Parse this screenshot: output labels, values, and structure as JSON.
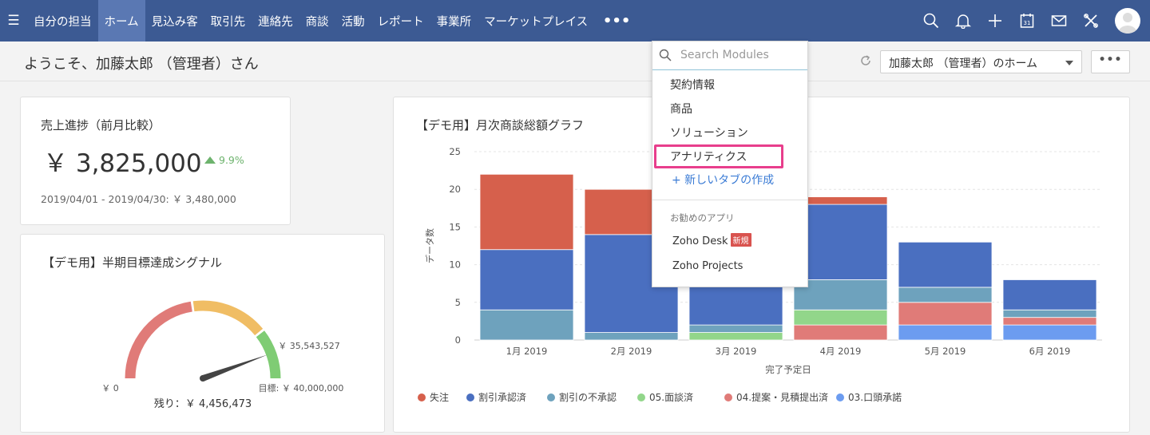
{
  "nav": {
    "items": [
      {
        "label": "自分の担当",
        "active": false
      },
      {
        "label": "ホーム",
        "active": true
      },
      {
        "label": "見込み客",
        "active": false
      },
      {
        "label": "取引先",
        "active": false
      },
      {
        "label": "連絡先",
        "active": false
      },
      {
        "label": "商談",
        "active": false
      },
      {
        "label": "活動",
        "active": false
      },
      {
        "label": "レポート",
        "active": false
      },
      {
        "label": "事業所",
        "active": false
      },
      {
        "label": "マーケットプレイス",
        "active": false
      }
    ],
    "more_label": "•••",
    "calendar_day": "31"
  },
  "header": {
    "welcome": "ようこそ、加藤太郎 （管理者）さん",
    "home_select": "加藤太郎 （管理者）のホーム",
    "more_label": "•••"
  },
  "dropdown": {
    "search_placeholder": "Search Modules",
    "items": [
      "契約情報",
      "商品",
      "ソリューション",
      "アナリティクス"
    ],
    "new_tab": "+ 新しいタブの作成",
    "section_title": "お勧めのアプリ",
    "apps": [
      {
        "label": "Zoho Desk",
        "badge": "新規"
      },
      {
        "label": "Zoho Projects",
        "badge": ""
      }
    ]
  },
  "sales_card": {
    "title": "売上進捗（前月比較）",
    "value": "￥ 3,825,000",
    "change": "9.9%",
    "previous": "2019/04/01 - 2019/04/30: ￥ 3,480,000"
  },
  "gauge_card": {
    "title": "【デモ用】半期目標達成シグナル",
    "min_label": "￥ 0",
    "max_label": "目標: ￥ 40,000,000",
    "current_label": "￥ 35,543,527",
    "remaining_label": "残り：￥ 4,456,473",
    "min": 0,
    "max": 40000000,
    "value": 35543527,
    "colors": [
      "#e07b78",
      "#f0bd64",
      "#7fcc74"
    ]
  },
  "chart_data": {
    "type": "bar",
    "stacked": true,
    "title": "【デモ用】月次商談総額グラフ",
    "xlabel": "完了予定日",
    "ylabel": "データ数",
    "ylim": [
      0,
      25
    ],
    "yticks": [
      0,
      5,
      10,
      15,
      20,
      25
    ],
    "grid": true,
    "legend_position": "bottom",
    "categories": [
      "1月 2019",
      "2月 2019",
      "3月 2019",
      "4月 2019",
      "5月 2019",
      "6月 2019"
    ],
    "series": [
      {
        "name": "03.口頭承諾",
        "color": "#6c9cf0",
        "values": [
          0,
          0,
          0,
          0,
          2,
          2
        ]
      },
      {
        "name": "04.提案・見積提出済",
        "color": "#e07b78",
        "values": [
          0,
          0,
          0,
          2,
          3,
          1
        ]
      },
      {
        "name": "05.面談済",
        "color": "#92d68a",
        "values": [
          0,
          0,
          1,
          2,
          0,
          0
        ]
      },
      {
        "name": "割引の不承認",
        "color": "#6ea2bd",
        "values": [
          4,
          1,
          1,
          4,
          2,
          1
        ]
      },
      {
        "name": "割引承認済",
        "color": "#4a6fc0",
        "values": [
          8,
          13,
          14,
          10,
          6,
          4
        ]
      },
      {
        "name": "失注",
        "color": "#d6604c",
        "values": [
          10,
          6,
          0,
          1,
          0,
          0
        ]
      }
    ],
    "legend_order": [
      "失注",
      "割引承認済",
      "割引の不承認",
      "05.面談済",
      "04.提案・見積提出済",
      "03.口頭承諾"
    ]
  }
}
